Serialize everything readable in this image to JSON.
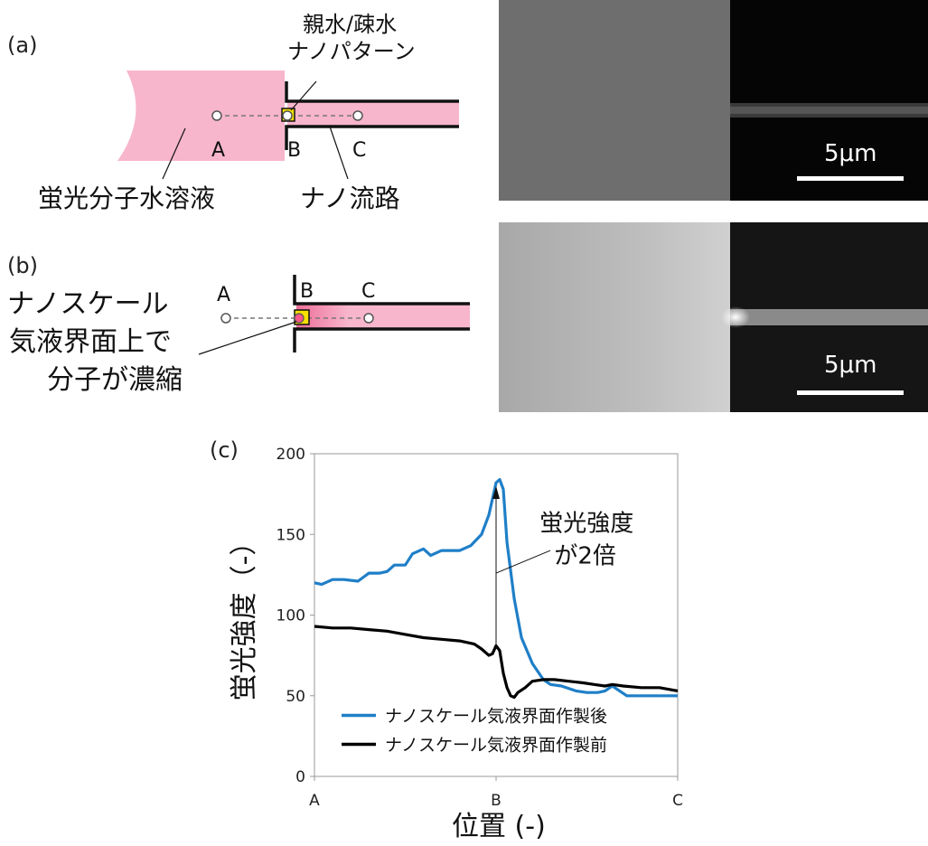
{
  "panels": {
    "a": {
      "label": "(a)",
      "pattern_label_line1": "親水/疎水",
      "pattern_label_line2": "ナノパターン",
      "solution_label": "蛍光分子水溶液",
      "channel_label": "ナノ流路",
      "point_a": "A",
      "point_b": "B",
      "point_c": "C",
      "scale_bar": "5μm"
    },
    "b": {
      "label": "(b)",
      "point_a": "A",
      "point_b": "B",
      "point_c": "C",
      "note_line1": "ナノスケール",
      "note_line2": "気液界面上で",
      "note_line3": "分子が濃縮",
      "scale_bar": "5μm"
    },
    "c": {
      "label": "(c)",
      "annotation_line1": "蛍光強度",
      "annotation_line2": "が2倍"
    }
  },
  "colors": {
    "solution_pink": "#f7b6cc",
    "pattern_yellow": "#f5e000",
    "series_after": "#1f7fc8",
    "series_before": "#000000"
  },
  "chart_data": {
    "type": "line",
    "xlabel": "位置 (-)",
    "ylabel": "蛍光強度（-）",
    "x_tick_labels": [
      "A",
      "B",
      "C"
    ],
    "xlim": [
      0,
      100
    ],
    "ylim": [
      0,
      200
    ],
    "y_ticks": [
      0,
      50,
      100,
      150,
      200
    ],
    "legend_position": "bottom-left",
    "grid": false,
    "series": [
      {
        "name": "ナノスケール気液界面作製後",
        "color": "#1f7fc8",
        "x": [
          0,
          2,
          5,
          8,
          12,
          15,
          18,
          20,
          22,
          25,
          27,
          30,
          32,
          35,
          37,
          40,
          43,
          46,
          48,
          50,
          51,
          52,
          53,
          55,
          57,
          60,
          63,
          65,
          68,
          72,
          75,
          78,
          80,
          82,
          86,
          90,
          95,
          100
        ],
        "y": [
          120,
          119,
          122,
          122,
          121,
          126,
          126,
          127,
          131,
          131,
          138,
          141,
          137,
          140,
          140,
          140,
          143,
          150,
          162,
          182,
          184,
          178,
          145,
          110,
          86,
          70,
          60,
          57,
          56,
          53,
          52,
          52,
          53,
          56,
          50,
          50,
          50,
          50
        ]
      },
      {
        "name": "ナノスケール気液界面作製前",
        "color": "#000000",
        "x": [
          0,
          5,
          10,
          15,
          20,
          25,
          30,
          35,
          40,
          44,
          46,
          48,
          49,
          50,
          51,
          52,
          53,
          54,
          55,
          56,
          58,
          60,
          63,
          66,
          70,
          74,
          77,
          80,
          82,
          85,
          90,
          95,
          100
        ],
        "y": [
          93,
          92,
          92,
          91,
          90,
          88,
          86,
          85,
          84,
          82,
          79,
          75,
          76,
          81,
          78,
          64,
          55,
          50,
          49,
          52,
          55,
          59,
          60,
          60,
          59,
          58,
          57,
          56,
          57,
          56,
          55,
          55,
          53
        ]
      }
    ]
  }
}
